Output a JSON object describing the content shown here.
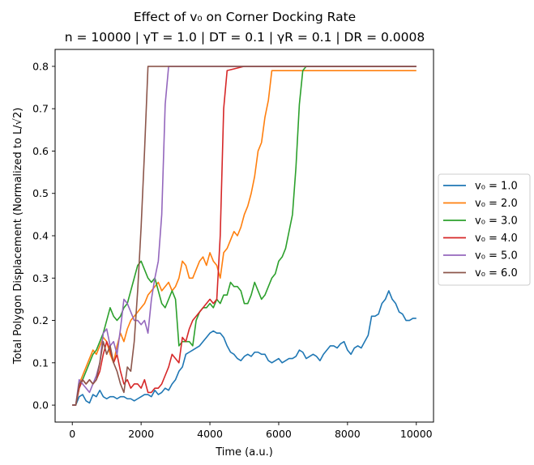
{
  "chart_data": {
    "type": "line",
    "title": "Effect of v₀ on Corner Docking Rate",
    "subtitle": "n = 10000 | γT = 1.0 | DT = 0.1 | γR = 0.1 | DR = 0.0008",
    "xlabel": "Time (a.u.)",
    "ylabel": "Total Polygon Displacement (Normalized to L/√2)",
    "xlim": [
      -500,
      10500
    ],
    "ylim": [
      -0.04,
      0.84
    ],
    "x_ticks": [
      0,
      2000,
      4000,
      6000,
      8000,
      10000
    ],
    "x_tick_labels": [
      "0",
      "2000",
      "4000",
      "6000",
      "8000",
      "10000"
    ],
    "y_ticks": [
      0.0,
      0.1,
      0.2,
      0.3,
      0.4,
      0.5,
      0.6,
      0.7,
      0.8
    ],
    "y_tick_labels": [
      "0.0",
      "0.1",
      "0.2",
      "0.3",
      "0.4",
      "0.5",
      "0.6",
      "0.7",
      "0.8"
    ],
    "grid": false,
    "legend_position": "outside-right",
    "series": [
      {
        "name": "v₀ = 1.0",
        "color": "#1f77b4",
        "x": [
          0,
          100,
          200,
          300,
          400,
          500,
          600,
          700,
          800,
          900,
          1000,
          1100,
          1200,
          1300,
          1400,
          1500,
          1600,
          1700,
          1800,
          1900,
          2000,
          2100,
          2200,
          2300,
          2400,
          2500,
          2600,
          2700,
          2800,
          2900,
          3000,
          3100,
          3200,
          3300,
          3400,
          3500,
          3600,
          3700,
          3800,
          3900,
          4000,
          4100,
          4200,
          4300,
          4400,
          4500,
          4600,
          4700,
          4800,
          4900,
          5000,
          5100,
          5200,
          5300,
          5400,
          5500,
          5600,
          5700,
          5800,
          5900,
          6000,
          6100,
          6200,
          6300,
          6400,
          6500,
          6600,
          6700,
          6800,
          6900,
          7000,
          7100,
          7200,
          7300,
          7400,
          7500,
          7600,
          7700,
          7800,
          7900,
          8000,
          8100,
          8200,
          8300,
          8400,
          8500,
          8600,
          8700,
          8800,
          8900,
          9000,
          9100,
          9200,
          9300,
          9400,
          9500,
          9600,
          9700,
          9800,
          9900,
          10000
        ],
        "values": [
          0.0,
          0.0,
          0.02,
          0.025,
          0.01,
          0.005,
          0.025,
          0.02,
          0.035,
          0.02,
          0.015,
          0.02,
          0.02,
          0.015,
          0.02,
          0.02,
          0.015,
          0.015,
          0.01,
          0.015,
          0.02,
          0.025,
          0.025,
          0.02,
          0.035,
          0.025,
          0.03,
          0.04,
          0.035,
          0.05,
          0.06,
          0.08,
          0.09,
          0.12,
          0.125,
          0.13,
          0.135,
          0.14,
          0.15,
          0.16,
          0.17,
          0.175,
          0.17,
          0.17,
          0.16,
          0.14,
          0.125,
          0.12,
          0.11,
          0.105,
          0.115,
          0.12,
          0.115,
          0.125,
          0.125,
          0.12,
          0.12,
          0.105,
          0.1,
          0.105,
          0.11,
          0.1,
          0.105,
          0.11,
          0.11,
          0.115,
          0.13,
          0.125,
          0.11,
          0.115,
          0.12,
          0.115,
          0.105,
          0.12,
          0.13,
          0.14,
          0.14,
          0.135,
          0.145,
          0.15,
          0.13,
          0.12,
          0.135,
          0.14,
          0.135,
          0.15,
          0.165,
          0.21,
          0.21,
          0.215,
          0.24,
          0.25,
          0.27,
          0.25,
          0.24,
          0.22,
          0.215,
          0.2,
          0.2,
          0.205,
          0.205
        ]
      },
      {
        "name": "v₀ = 2.0",
        "color": "#ff7f0e",
        "x": [
          0,
          100,
          200,
          300,
          400,
          500,
          600,
          700,
          800,
          900,
          1000,
          1100,
          1200,
          1300,
          1400,
          1500,
          1600,
          1700,
          1800,
          1900,
          2000,
          2100,
          2200,
          2300,
          2400,
          2500,
          2600,
          2700,
          2800,
          2900,
          3000,
          3100,
          3200,
          3300,
          3400,
          3500,
          3600,
          3700,
          3800,
          3900,
          4000,
          4100,
          4200,
          4300,
          4400,
          4500,
          4600,
          4700,
          4800,
          4900,
          5000,
          5100,
          5200,
          5300,
          5400,
          5500,
          5600,
          5700,
          5800,
          5900,
          6000,
          6500,
          7000,
          7500,
          8000,
          8500,
          9000,
          9500,
          10000
        ],
        "values": [
          0.0,
          0.0,
          0.05,
          0.07,
          0.09,
          0.11,
          0.13,
          0.12,
          0.14,
          0.16,
          0.15,
          0.12,
          0.1,
          0.14,
          0.17,
          0.15,
          0.18,
          0.2,
          0.21,
          0.22,
          0.23,
          0.24,
          0.26,
          0.27,
          0.28,
          0.29,
          0.27,
          0.28,
          0.29,
          0.27,
          0.28,
          0.3,
          0.34,
          0.33,
          0.3,
          0.3,
          0.32,
          0.34,
          0.35,
          0.33,
          0.36,
          0.34,
          0.33,
          0.3,
          0.36,
          0.37,
          0.39,
          0.41,
          0.4,
          0.42,
          0.45,
          0.47,
          0.5,
          0.54,
          0.6,
          0.62,
          0.68,
          0.72,
          0.79,
          0.79,
          0.79,
          0.79,
          0.79,
          0.79,
          0.79,
          0.79,
          0.79,
          0.79,
          0.79
        ]
      },
      {
        "name": "v₀ = 3.0",
        "color": "#2ca02c",
        "x": [
          0,
          100,
          200,
          300,
          400,
          500,
          600,
          700,
          800,
          900,
          1000,
          1100,
          1200,
          1300,
          1400,
          1500,
          1600,
          1700,
          1800,
          1900,
          2000,
          2100,
          2200,
          2300,
          2400,
          2500,
          2600,
          2700,
          2800,
          2900,
          3000,
          3100,
          3200,
          3300,
          3400,
          3500,
          3600,
          3700,
          3800,
          3900,
          4000,
          4100,
          4200,
          4300,
          4400,
          4500,
          4600,
          4700,
          4800,
          4900,
          5000,
          5100,
          5200,
          5300,
          5400,
          5500,
          5600,
          5700,
          5800,
          5900,
          6000,
          6100,
          6200,
          6300,
          6400,
          6500,
          6600,
          6700,
          6800,
          7000,
          7500,
          8000,
          8500,
          9000,
          9500,
          10000
        ],
        "values": [
          0.0,
          0.0,
          0.04,
          0.06,
          0.08,
          0.1,
          0.12,
          0.13,
          0.15,
          0.17,
          0.2,
          0.23,
          0.21,
          0.2,
          0.21,
          0.23,
          0.24,
          0.27,
          0.3,
          0.33,
          0.34,
          0.32,
          0.3,
          0.29,
          0.3,
          0.27,
          0.24,
          0.23,
          0.25,
          0.27,
          0.25,
          0.14,
          0.15,
          0.15,
          0.15,
          0.14,
          0.2,
          0.22,
          0.23,
          0.23,
          0.24,
          0.23,
          0.25,
          0.24,
          0.26,
          0.26,
          0.29,
          0.28,
          0.28,
          0.27,
          0.24,
          0.24,
          0.26,
          0.29,
          0.27,
          0.25,
          0.26,
          0.28,
          0.3,
          0.31,
          0.34,
          0.35,
          0.37,
          0.41,
          0.45,
          0.56,
          0.71,
          0.79,
          0.8,
          0.8,
          0.8,
          0.8,
          0.8,
          0.8,
          0.8,
          0.8
        ]
      },
      {
        "name": "v₀ = 4.0",
        "color": "#d62728",
        "x": [
          0,
          100,
          200,
          300,
          400,
          500,
          600,
          700,
          800,
          900,
          1000,
          1100,
          1200,
          1300,
          1400,
          1500,
          1600,
          1700,
          1800,
          1900,
          2000,
          2100,
          2200,
          2300,
          2400,
          2500,
          2600,
          2700,
          2800,
          2900,
          3000,
          3100,
          3200,
          3300,
          3400,
          3500,
          3600,
          3700,
          3800,
          3900,
          4000,
          4100,
          4200,
          4300,
          4400,
          4500,
          5000,
          6000,
          7000,
          8000,
          9000,
          10000
        ],
        "values": [
          0.0,
          0.0,
          0.04,
          0.06,
          0.05,
          0.06,
          0.05,
          0.06,
          0.08,
          0.12,
          0.15,
          0.13,
          0.1,
          0.12,
          0.08,
          0.05,
          0.06,
          0.04,
          0.05,
          0.05,
          0.04,
          0.06,
          0.03,
          0.03,
          0.04,
          0.04,
          0.05,
          0.07,
          0.09,
          0.12,
          0.11,
          0.1,
          0.16,
          0.15,
          0.18,
          0.2,
          0.21,
          0.22,
          0.23,
          0.24,
          0.25,
          0.24,
          0.25,
          0.4,
          0.7,
          0.79,
          0.8,
          0.8,
          0.8,
          0.8,
          0.8,
          0.8
        ]
      },
      {
        "name": "v₀ = 5.0",
        "color": "#9467bd",
        "x": [
          0,
          100,
          200,
          300,
          400,
          500,
          600,
          700,
          800,
          900,
          1000,
          1100,
          1200,
          1300,
          1400,
          1500,
          1600,
          1700,
          1800,
          1900,
          2000,
          2100,
          2200,
          2300,
          2400,
          2500,
          2600,
          2700,
          2800,
          2900,
          3000,
          4000,
          5000,
          6000,
          7000,
          8000,
          9000,
          10000
        ],
        "values": [
          0.0,
          0.0,
          0.06,
          0.05,
          0.04,
          0.03,
          0.05,
          0.07,
          0.1,
          0.17,
          0.18,
          0.14,
          0.15,
          0.12,
          0.18,
          0.25,
          0.24,
          0.22,
          0.2,
          0.2,
          0.19,
          0.2,
          0.17,
          0.25,
          0.3,
          0.34,
          0.45,
          0.71,
          0.8,
          0.8,
          0.8,
          0.8,
          0.8,
          0.8,
          0.8,
          0.8,
          0.8,
          0.8
        ]
      },
      {
        "name": "v₀ = 6.0",
        "color": "#8c564b",
        "x": [
          0,
          100,
          200,
          300,
          400,
          500,
          600,
          700,
          800,
          900,
          1000,
          1100,
          1200,
          1300,
          1400,
          1500,
          1600,
          1700,
          1800,
          1900,
          2000,
          2100,
          2200,
          3000,
          4000,
          5000,
          6000,
          7000,
          8000,
          9000,
          10000
        ],
        "values": [
          0.0,
          0.0,
          0.05,
          0.06,
          0.05,
          0.06,
          0.05,
          0.06,
          0.1,
          0.15,
          0.12,
          0.14,
          0.1,
          0.08,
          0.05,
          0.03,
          0.09,
          0.08,
          0.15,
          0.27,
          0.42,
          0.6,
          0.8,
          0.8,
          0.8,
          0.8,
          0.8,
          0.8,
          0.8,
          0.8,
          0.8
        ]
      }
    ]
  }
}
